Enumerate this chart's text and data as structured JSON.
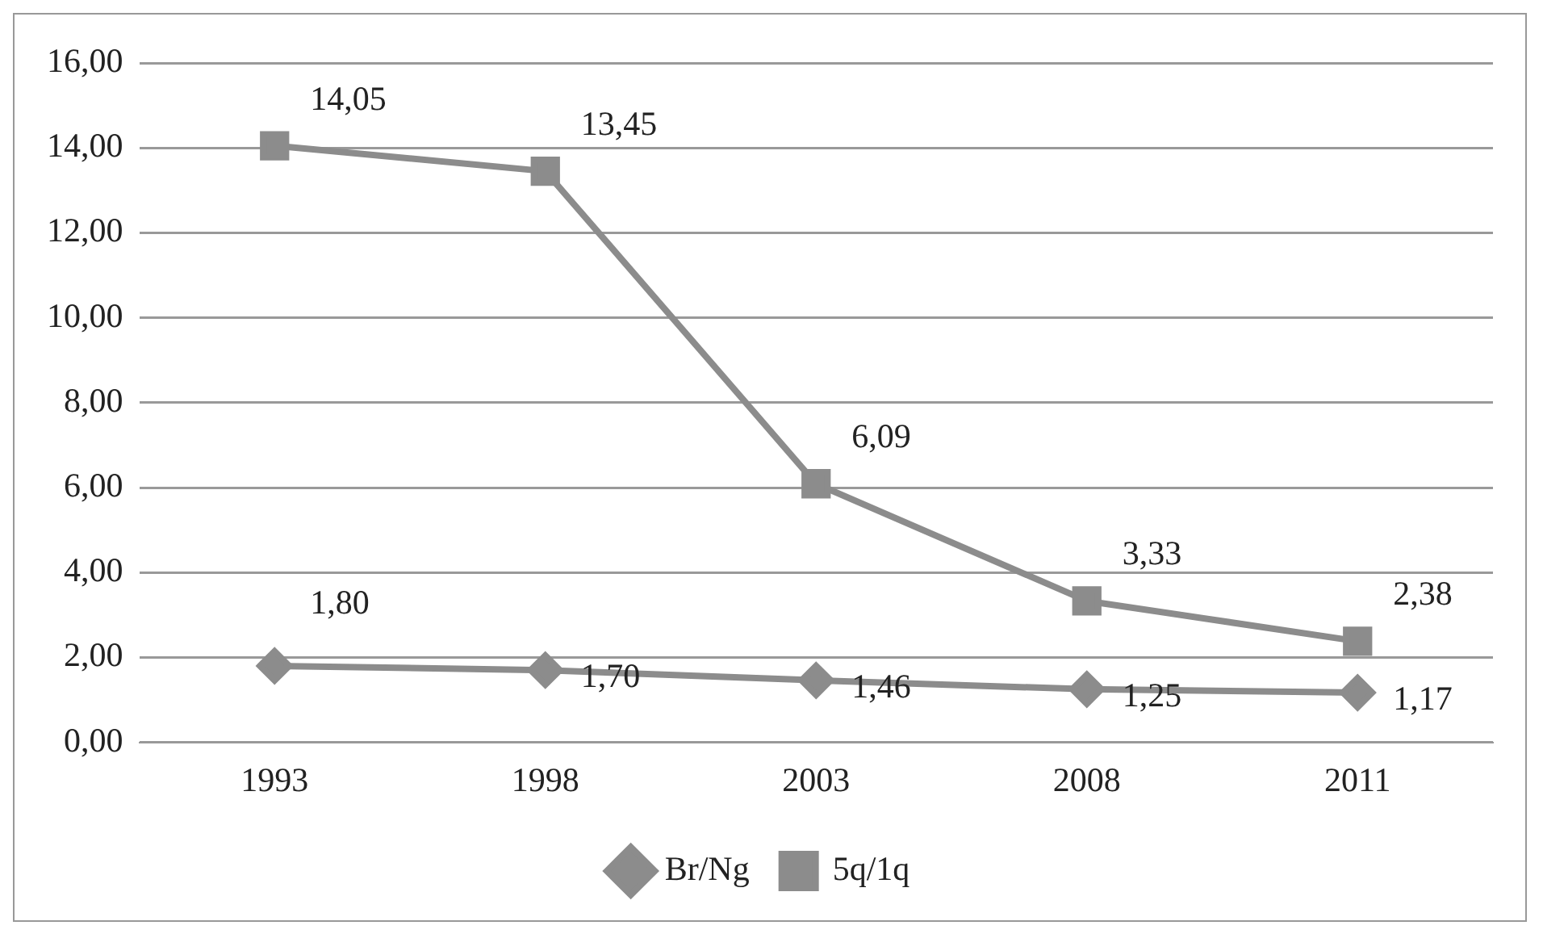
{
  "chart_data": {
    "type": "line",
    "categories": [
      "1993",
      "1998",
      "2003",
      "2008",
      "2011"
    ],
    "series": [
      {
        "name": "Br/Ng",
        "color": "#8c8c8c",
        "marker": "diamond",
        "values": [
          1.8,
          1.7,
          1.46,
          1.25,
          1.17
        ],
        "value_labels": [
          "1,80",
          "1,70",
          "1,46",
          "1,25",
          "1,17"
        ]
      },
      {
        "name": "5q/1q",
        "color": "#8c8c8c",
        "marker": "square",
        "values": [
          14.05,
          13.45,
          6.09,
          3.33,
          2.38
        ],
        "value_labels": [
          "14,05",
          "13,45",
          "6,09",
          "3,33",
          "2,38"
        ]
      }
    ],
    "ylim": [
      0,
      16
    ],
    "yticks": [
      {
        "value": 0,
        "label": "0,00"
      },
      {
        "value": 2,
        "label": "2,00"
      },
      {
        "value": 4,
        "label": "4,00"
      },
      {
        "value": 6,
        "label": "6,00"
      },
      {
        "value": 8,
        "label": "8,00"
      },
      {
        "value": 10,
        "label": "10,00"
      },
      {
        "value": 12,
        "label": "12,00"
      },
      {
        "value": 14,
        "label": "14,00"
      },
      {
        "value": 16,
        "label": "16,00"
      }
    ],
    "grid": "y",
    "legend": "bottom",
    "line_style": "solid"
  }
}
